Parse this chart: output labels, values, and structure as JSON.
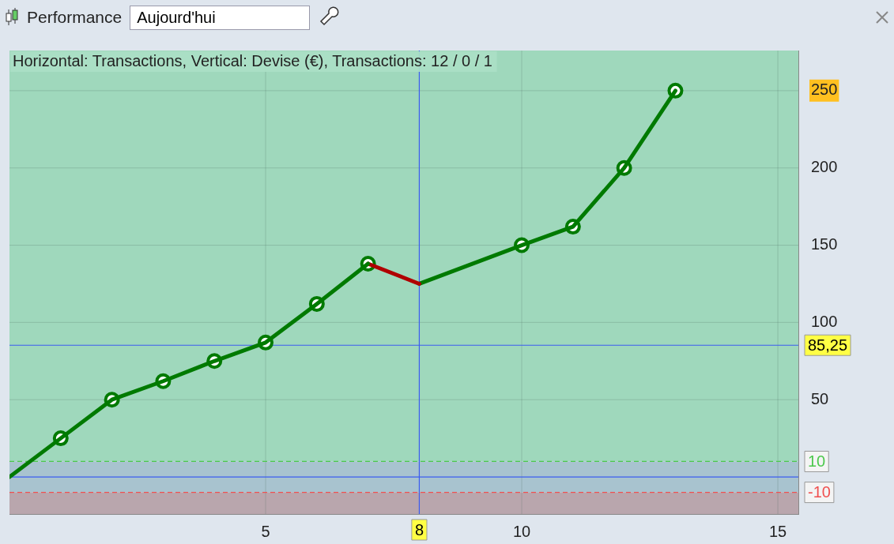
{
  "chart_data": {
    "type": "line",
    "title": "Performance",
    "subtitle": "Aujourd'hui",
    "annotations": [
      "Horizontal: Transactions, Vertical: Devise (€), Transactions: 12 / 0 / 1"
    ],
    "xlim": [
      0,
      15.4
    ],
    "xticks": [
      5,
      10,
      15
    ],
    "ylim": [
      -24,
      276
    ],
    "yticks": [
      50,
      100,
      150,
      200,
      250
    ],
    "grid": true,
    "legend": false,
    "line_style": "solid",
    "series": [
      {
        "type": "line",
        "color": "#007a00",
        "x": [
          0,
          1,
          2,
          3,
          4,
          5,
          6,
          7
        ],
        "values": [
          0,
          25,
          50,
          62,
          75,
          87,
          112,
          138
        ],
        "marker": "none"
      },
      {
        "type": "line",
        "color": "#b00000",
        "x": [
          7,
          8
        ],
        "values": [
          138,
          125
        ],
        "marker": "none"
      },
      {
        "type": "line",
        "color": "#007a00",
        "x": [
          8,
          10,
          11,
          12,
          13
        ],
        "values": [
          125,
          150,
          162,
          200,
          250
        ],
        "marker": "none"
      },
      {
        "type": "scatter",
        "color": "#007a00",
        "x": [
          1,
          2,
          3,
          4,
          5,
          6,
          7,
          10,
          11,
          12,
          13
        ],
        "values": [
          25,
          50,
          62,
          75,
          87,
          112,
          138,
          150,
          162,
          200,
          250
        ],
        "marker": "circle"
      }
    ],
    "ref_lines": [
      {
        "axis": "y",
        "value": 85.25,
        "label": "85,25",
        "color": "#3b5cf0"
      },
      {
        "axis": "x",
        "value": 8,
        "label": "8",
        "color": "#3b5cf0"
      },
      {
        "axis": "y",
        "value": 0,
        "color": "#3b5cf0"
      },
      {
        "axis": "y",
        "value": 10,
        "label": "10",
        "color": "#4cc84c",
        "line_style": "dashed"
      },
      {
        "axis": "y",
        "value": -10,
        "label": "-10",
        "color": "#f05050",
        "line_style": "dashed"
      }
    ],
    "bands": [
      {
        "axis": "y",
        "from": 10,
        "to": 276,
        "color": "#9fd8bc"
      },
      {
        "axis": "y",
        "from": -10,
        "to": 10,
        "color": "#a8c3cf"
      },
      {
        "axis": "y",
        "from": -24,
        "to": -10,
        "color": "#b9a6ad"
      }
    ]
  }
}
